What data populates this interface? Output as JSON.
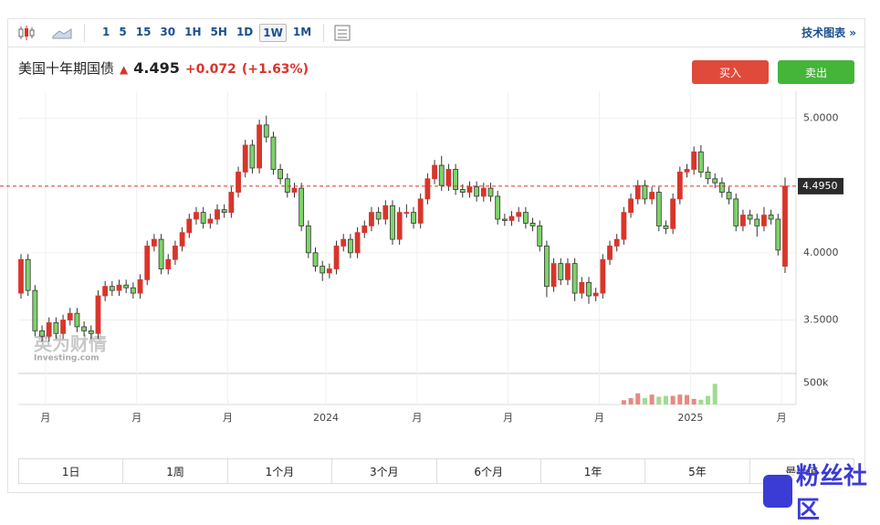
{
  "toolbar": {
    "intervals": [
      "1",
      "5",
      "15",
      "30",
      "1H",
      "5H",
      "1D",
      "1W",
      "1M"
    ],
    "link": "技术图表 »"
  },
  "header": {
    "name": "美国十年期国债",
    "price": "4.495",
    "change": "+0.072",
    "change_pct": "(+1.63%)",
    "buy": "买入",
    "sell": "卖出"
  },
  "chart_data": {
    "type": "candlestick",
    "up_color": "#d9352b",
    "down_color": "#7ed36a",
    "candles": [
      [
        3.7,
        3.99,
        3.66,
        3.95
      ],
      [
        3.95,
        3.99,
        3.68,
        3.72
      ],
      [
        3.72,
        3.76,
        3.38,
        3.42
      ],
      [
        3.42,
        3.46,
        3.34,
        3.38
      ],
      [
        3.38,
        3.52,
        3.34,
        3.48
      ],
      [
        3.48,
        3.52,
        3.36,
        3.4
      ],
      [
        3.4,
        3.54,
        3.36,
        3.5
      ],
      [
        3.5,
        3.59,
        3.46,
        3.55
      ],
      [
        3.55,
        3.59,
        3.41,
        3.45
      ],
      [
        3.45,
        3.49,
        3.38,
        3.42
      ],
      [
        3.42,
        3.46,
        3.36,
        3.4
      ],
      [
        3.4,
        3.72,
        3.36,
        3.68
      ],
      [
        3.68,
        3.79,
        3.64,
        3.75
      ],
      [
        3.75,
        3.79,
        3.68,
        3.72
      ],
      [
        3.72,
        3.8,
        3.68,
        3.76
      ],
      [
        3.76,
        3.8,
        3.7,
        3.74
      ],
      [
        3.74,
        3.78,
        3.66,
        3.7
      ],
      [
        3.7,
        3.84,
        3.66,
        3.8
      ],
      [
        3.8,
        4.09,
        3.76,
        4.05
      ],
      [
        4.05,
        4.14,
        4.01,
        4.1
      ],
      [
        4.1,
        4.14,
        3.84,
        3.88
      ],
      [
        3.88,
        3.99,
        3.84,
        3.95
      ],
      [
        3.95,
        4.09,
        3.91,
        4.05
      ],
      [
        4.05,
        4.19,
        4.01,
        4.15
      ],
      [
        4.15,
        4.29,
        4.11,
        4.25
      ],
      [
        4.25,
        4.34,
        4.21,
        4.3
      ],
      [
        4.3,
        4.34,
        4.18,
        4.22
      ],
      [
        4.22,
        4.29,
        4.18,
        4.25
      ],
      [
        4.25,
        4.36,
        4.21,
        4.32
      ],
      [
        4.32,
        4.36,
        4.26,
        4.3
      ],
      [
        4.3,
        4.49,
        4.26,
        4.45
      ],
      [
        4.45,
        4.64,
        4.41,
        4.6
      ],
      [
        4.6,
        4.84,
        4.56,
        4.8
      ],
      [
        4.8,
        4.84,
        4.59,
        4.63
      ],
      [
        4.63,
        4.99,
        4.59,
        4.95
      ],
      [
        4.95,
        5.02,
        4.82,
        4.86
      ],
      [
        4.86,
        4.9,
        4.58,
        4.62
      ],
      [
        4.62,
        4.66,
        4.51,
        4.55
      ],
      [
        4.55,
        4.59,
        4.41,
        4.45
      ],
      [
        4.45,
        4.52,
        4.41,
        4.48
      ],
      [
        4.48,
        4.52,
        4.16,
        4.2
      ],
      [
        4.2,
        4.24,
        3.96,
        4.0
      ],
      [
        4.0,
        4.04,
        3.86,
        3.9
      ],
      [
        3.9,
        3.94,
        3.79,
        3.85
      ],
      [
        3.85,
        3.92,
        3.81,
        3.88
      ],
      [
        3.88,
        4.09,
        3.84,
        4.05
      ],
      [
        4.05,
        4.14,
        4.01,
        4.1
      ],
      [
        4.1,
        4.14,
        3.96,
        4.0
      ],
      [
        4.0,
        4.19,
        3.96,
        4.15
      ],
      [
        4.15,
        4.24,
        4.11,
        4.2
      ],
      [
        4.2,
        4.34,
        4.16,
        4.3
      ],
      [
        4.3,
        4.34,
        4.21,
        4.25
      ],
      [
        4.25,
        4.39,
        4.21,
        4.35
      ],
      [
        4.35,
        4.39,
        4.06,
        4.1
      ],
      [
        4.1,
        4.34,
        4.06,
        4.3
      ],
      [
        4.3,
        4.36,
        4.26,
        4.3
      ],
      [
        4.3,
        4.34,
        4.18,
        4.22
      ],
      [
        4.22,
        4.44,
        4.18,
        4.4
      ],
      [
        4.4,
        4.59,
        4.36,
        4.55
      ],
      [
        4.55,
        4.69,
        4.51,
        4.65
      ],
      [
        4.65,
        4.72,
        4.46,
        4.5
      ],
      [
        4.5,
        4.66,
        4.46,
        4.62
      ],
      [
        4.62,
        4.66,
        4.43,
        4.47
      ],
      [
        4.47,
        4.51,
        4.41,
        4.45
      ],
      [
        4.45,
        4.53,
        4.41,
        4.49
      ],
      [
        4.49,
        4.53,
        4.38,
        4.42
      ],
      [
        4.42,
        4.52,
        4.38,
        4.48
      ],
      [
        4.48,
        4.52,
        4.38,
        4.42
      ],
      [
        4.42,
        4.46,
        4.21,
        4.25
      ],
      [
        4.25,
        4.29,
        4.2,
        4.24
      ],
      [
        4.24,
        4.31,
        4.2,
        4.27
      ],
      [
        4.27,
        4.34,
        4.23,
        4.3
      ],
      [
        4.3,
        4.34,
        4.18,
        4.22
      ],
      [
        4.22,
        4.26,
        4.16,
        4.2
      ],
      [
        4.2,
        4.24,
        4.01,
        4.05
      ],
      [
        4.05,
        4.09,
        3.67,
        3.75
      ],
      [
        3.75,
        3.96,
        3.71,
        3.92
      ],
      [
        3.92,
        3.96,
        3.76,
        3.8
      ],
      [
        3.8,
        3.96,
        3.76,
        3.92
      ],
      [
        3.92,
        3.96,
        3.64,
        3.7
      ],
      [
        3.7,
        3.82,
        3.66,
        3.78
      ],
      [
        3.78,
        3.82,
        3.62,
        3.68
      ],
      [
        3.68,
        3.74,
        3.64,
        3.7
      ],
      [
        3.7,
        3.99,
        3.66,
        3.95
      ],
      [
        3.95,
        4.09,
        3.91,
        4.05
      ],
      [
        4.05,
        4.14,
        4.01,
        4.1
      ],
      [
        4.1,
        4.34,
        4.06,
        4.3
      ],
      [
        4.3,
        4.44,
        4.26,
        4.4
      ],
      [
        4.4,
        4.54,
        4.36,
        4.5
      ],
      [
        4.5,
        4.54,
        4.36,
        4.4
      ],
      [
        4.4,
        4.49,
        4.36,
        4.45
      ],
      [
        4.45,
        4.49,
        4.16,
        4.2
      ],
      [
        4.2,
        4.24,
        4.14,
        4.18
      ],
      [
        4.18,
        4.44,
        4.14,
        4.4
      ],
      [
        4.4,
        4.64,
        4.36,
        4.6
      ],
      [
        4.6,
        4.66,
        4.56,
        4.62
      ],
      [
        4.62,
        4.79,
        4.58,
        4.75
      ],
      [
        4.75,
        4.8,
        4.56,
        4.6
      ],
      [
        4.6,
        4.64,
        4.51,
        4.55
      ],
      [
        4.55,
        4.59,
        4.48,
        4.52
      ],
      [
        4.52,
        4.56,
        4.41,
        4.45
      ],
      [
        4.45,
        4.49,
        4.36,
        4.4
      ],
      [
        4.4,
        4.44,
        4.16,
        4.2
      ],
      [
        4.2,
        4.32,
        4.16,
        4.28
      ],
      [
        4.28,
        4.32,
        4.21,
        4.25
      ],
      [
        4.25,
        4.29,
        4.12,
        4.2
      ],
      [
        4.2,
        4.34,
        4.16,
        4.28
      ],
      [
        4.28,
        4.32,
        4.21,
        4.25
      ],
      [
        4.25,
        4.29,
        3.98,
        4.02
      ],
      [
        3.9,
        4.56,
        3.85,
        4.495
      ]
    ],
    "volume": [
      null,
      null,
      null,
      null,
      null,
      null,
      null,
      null,
      null,
      null,
      null,
      null,
      null,
      null,
      null,
      null,
      null,
      null,
      null,
      null,
      null,
      null,
      null,
      null,
      null,
      null,
      null,
      null,
      null,
      null,
      null,
      null,
      null,
      null,
      null,
      null,
      null,
      null,
      null,
      null,
      null,
      null,
      null,
      null,
      null,
      null,
      null,
      null,
      null,
      null,
      null,
      null,
      null,
      null,
      null,
      null,
      null,
      null,
      null,
      null,
      null,
      null,
      null,
      null,
      null,
      null,
      null,
      null,
      null,
      null,
      null,
      null,
      null,
      null,
      null,
      null,
      null,
      null,
      null,
      null,
      null,
      null,
      null,
      null,
      null,
      null,
      100000,
      150000,
      260000,
      150000,
      230000,
      180000,
      200000,
      200000,
      230000,
      220000,
      130000,
      110000,
      200000,
      480000
    ],
    "ylim": [
      3.11,
      5.2
    ],
    "yticks": [
      {
        "value": 3.5,
        "label": "3.5000"
      },
      {
        "value": 4,
        "label": "4.0000"
      },
      {
        "value": 5,
        "label": "5.0000"
      }
    ],
    "volume_ylim": [
      0,
      700000
    ],
    "volume_yticks": [
      {
        "value": 500000,
        "label": "500k"
      }
    ],
    "xticks": [
      {
        "value": 3.5,
        "label": "月"
      },
      {
        "value": 16.5,
        "label": "月"
      },
      {
        "value": 29.5,
        "label": "月"
      },
      {
        "value": 43.5,
        "label": "2024"
      },
      {
        "value": 56.5,
        "label": "月"
      },
      {
        "value": 69.5,
        "label": "月"
      },
      {
        "value": 82.5,
        "label": "月"
      },
      {
        "value": 95.5,
        "label": "2025"
      },
      {
        "value": 108.5,
        "label": "月"
      }
    ],
    "price_line": {
      "value": 4.495,
      "label": "4.4950"
    },
    "watermark": "英为财情",
    "watermark_sub": "Investing.com"
  },
  "ranges": [
    "1日",
    "1周",
    "1个月",
    "3个月",
    "6个月",
    "1年",
    "5年",
    "最大值"
  ],
  "badge": "粉丝社区"
}
